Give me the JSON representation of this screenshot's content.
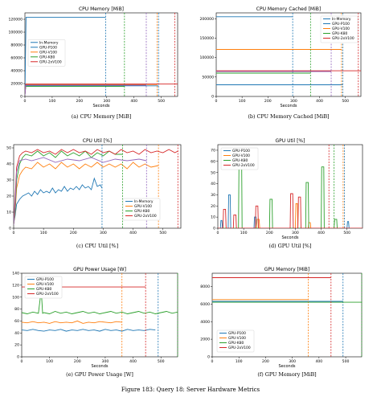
{
  "figure_caption": "Figure 183: Query 18: Server Hardware Metrics",
  "colors": {
    "In-Memory": "#1f77b4",
    "GPU-P100": "#1f77b4",
    "GPU-V100": "#ff7f0e",
    "GPU-K80": "#2ca02c",
    "GPU-2xV100": "#d62728",
    "CPU-V100": "#ff7f0e",
    "CPU-K80": "#2ca02c"
  },
  "chart_data": [
    {
      "id": "a",
      "type": "line",
      "title": "CPU Memory [MiB]",
      "xlabel": "Seconds",
      "caption": "(a) CPU Memory [MiB]",
      "xlim": [
        0,
        560
      ],
      "ylim": [
        0,
        130000
      ],
      "xticks": [
        0,
        100,
        200,
        300,
        400,
        500
      ],
      "yticks": [
        0,
        20000,
        40000,
        60000,
        80000,
        100000,
        120000
      ],
      "legend": "middle-left",
      "series": [
        {
          "name": "In-Memory",
          "color": "#1f77b4",
          "x": [
            0,
            4,
            296
          ],
          "y": [
            3000,
            123000,
            123000
          ],
          "end": 296
        },
        {
          "name": "GPU-P100",
          "color": "#1f77b4",
          "x": [
            0,
            3,
            490
          ],
          "y": [
            2000,
            16500,
            16500
          ],
          "end": 490
        },
        {
          "name": "GPU-V100",
          "color": "#ff7f0e",
          "x": [
            0,
            3,
            485
          ],
          "y": [
            2000,
            18500,
            18500
          ],
          "end": 485
        },
        {
          "name": "GPU-K80",
          "color": "#2ca02c",
          "x": [
            0,
            3,
            365
          ],
          "y": [
            2000,
            15500,
            15500
          ],
          "end": 365
        },
        {
          "name": "GPU-2xV100",
          "color": "#d62728",
          "x": [
            0,
            3,
            560
          ],
          "y": [
            2000,
            19500,
            19500
          ],
          "end": 550
        },
        {
          "name": "",
          "color": "#9467bd",
          "x": [
            0,
            3,
            445
          ],
          "y": [
            2000,
            17500,
            17500
          ],
          "end": 445
        }
      ]
    },
    {
      "id": "b",
      "type": "line",
      "title": "CPU Memory Cached [MiB]",
      "xlabel": "Seconds",
      "caption": "(b) CPU Memory Cached [MiB]",
      "xlim": [
        0,
        560
      ],
      "ylim": [
        0,
        215000
      ],
      "xticks": [
        0,
        100,
        200,
        300,
        400,
        500
      ],
      "yticks": [
        0,
        50000,
        100000,
        150000,
        200000
      ],
      "legend": "top-right",
      "series": [
        {
          "name": "In-Memory",
          "color": "#1f77b4",
          "x": [
            0,
            296
          ],
          "y": [
            205000,
            205000
          ],
          "end": 296
        },
        {
          "name": "GPU-P100",
          "color": "#1f77b4",
          "x": [
            0,
            490
          ],
          "y": [
            30000,
            30000
          ],
          "end": 490
        },
        {
          "name": "GPU-V100",
          "color": "#ff7f0e",
          "x": [
            0,
            485
          ],
          "y": [
            121000,
            121000
          ],
          "end": 485
        },
        {
          "name": "GPU-K80",
          "color": "#2ca02c",
          "x": [
            0,
            365
          ],
          "y": [
            60000,
            60000
          ],
          "end": 365
        },
        {
          "name": "GPU-2xV100",
          "color": "#d62728",
          "x": [
            0,
            560
          ],
          "y": [
            66000,
            66000
          ],
          "end": 550
        },
        {
          "name": "",
          "color": "#9467bd",
          "x": [
            0,
            445
          ],
          "y": [
            64000,
            64000
          ],
          "end": 445
        }
      ]
    },
    {
      "id": "c",
      "type": "line",
      "title": "CPU Util [%]",
      "xlabel": "",
      "caption": "(c) CPU Util [%]",
      "xlim": [
        0,
        560
      ],
      "ylim": [
        0,
        52
      ],
      "xticks": [
        0,
        100,
        200,
        300,
        400,
        500
      ],
      "yticks": [
        0,
        10,
        20,
        30,
        40,
        50
      ],
      "legend": "lower-right",
      "series": [
        {
          "name": "In-Memory",
          "color": "#1f77b4",
          "x": [
            0,
            5,
            10,
            20,
            30,
            40,
            50,
            60,
            70,
            80,
            90,
            100,
            110,
            120,
            130,
            140,
            150,
            160,
            170,
            180,
            190,
            200,
            210,
            220,
            230,
            240,
            250,
            260,
            270,
            280,
            290,
            296
          ],
          "y": [
            3,
            8,
            15,
            18,
            20,
            21,
            22,
            20,
            23,
            21,
            24,
            22,
            23,
            22,
            25,
            22,
            24,
            23,
            26,
            23,
            25,
            24,
            26,
            24,
            27,
            25,
            26,
            24,
            31,
            26,
            27,
            25
          ],
          "end": 296
        },
        {
          "name": "GPU-V100",
          "color": "#ff7f0e",
          "x": [
            0,
            5,
            10,
            20,
            30,
            40,
            60,
            80,
            100,
            120,
            140,
            160,
            180,
            200,
            220,
            240,
            260,
            280,
            300,
            320,
            340,
            360,
            380,
            400,
            420,
            440,
            460,
            485
          ],
          "y": [
            2,
            10,
            25,
            33,
            36,
            38,
            37,
            41,
            38,
            40,
            37,
            41,
            38,
            40,
            37,
            40,
            38,
            41,
            38,
            40,
            38,
            40,
            37,
            41,
            38,
            40,
            38,
            39
          ],
          "end": 485
        },
        {
          "name": "GPU-K80",
          "color": "#2ca02c",
          "x": [
            0,
            5,
            10,
            20,
            30,
            40,
            60,
            80,
            100,
            120,
            140,
            160,
            180,
            200,
            220,
            240,
            260,
            280,
            300,
            320,
            340,
            365
          ],
          "y": [
            2,
            12,
            30,
            40,
            44,
            46,
            45,
            48,
            45,
            47,
            44,
            48,
            45,
            47,
            45,
            48,
            44,
            47,
            45,
            48,
            46,
            46
          ],
          "end": 365
        },
        {
          "name": "GPU-2xV100",
          "color": "#d62728",
          "x": [
            0,
            5,
            10,
            20,
            30,
            40,
            60,
            80,
            100,
            120,
            140,
            160,
            180,
            200,
            220,
            240,
            260,
            280,
            300,
            320,
            340,
            360,
            380,
            400,
            420,
            440,
            460,
            480,
            500,
            520,
            540,
            550
          ],
          "y": [
            2,
            20,
            38,
            45,
            47,
            48,
            47,
            49,
            47,
            48,
            46,
            49,
            47,
            49,
            47,
            48,
            46,
            49,
            47,
            48,
            46,
            49,
            47,
            48,
            46,
            49,
            47,
            48,
            47,
            49,
            47,
            48
          ],
          "end": 550
        },
        {
          "name": "",
          "color": "#9467bd",
          "x": [
            0,
            5,
            10,
            20,
            40,
            60,
            100,
            140,
            180,
            220,
            260,
            300,
            340,
            380,
            420,
            445
          ],
          "y": [
            2,
            15,
            35,
            42,
            43,
            42,
            44,
            41,
            43,
            42,
            44,
            41,
            43,
            42,
            43,
            42
          ],
          "end": 445
        }
      ]
    },
    {
      "id": "d",
      "type": "line",
      "title": "GPU Util [%]",
      "xlabel": "Seconds",
      "caption": "(d) GPU Util [%]",
      "xlim": [
        0,
        560
      ],
      "ylim": [
        0,
        75
      ],
      "xticks": [
        0,
        100,
        200,
        300,
        400,
        500
      ],
      "yticks": [
        0,
        10,
        20,
        30,
        40,
        50,
        60,
        70
      ],
      "legend": "top-left",
      "series": [
        {
          "name": "GPU-P100",
          "color": "#1f77b4",
          "x": [
            0,
            10,
            12,
            16,
            18,
            40,
            42,
            48,
            50,
            140,
            142,
            148,
            150,
            500,
            502,
            506,
            508,
            560
          ],
          "y": [
            0,
            0,
            7,
            7,
            0,
            0,
            30,
            30,
            0,
            0,
            10,
            10,
            0,
            0,
            6,
            6,
            0,
            0
          ],
          "end": 490
        },
        {
          "name": "GPU-V100",
          "color": "#ff7f0e",
          "x": [
            0,
            150,
            152,
            160,
            162,
            300,
            302,
            308,
            310,
            350,
            352,
            358,
            360,
            560
          ],
          "y": [
            0,
            0,
            8,
            8,
            0,
            0,
            22,
            22,
            0,
            0,
            5,
            5,
            0,
            0
          ],
          "end": 485
        },
        {
          "name": "GPU-K80",
          "color": "#2ca02c",
          "x": [
            0,
            80,
            82,
            92,
            94,
            200,
            202,
            210,
            212,
            340,
            342,
            350,
            352,
            400,
            402,
            410,
            412,
            450,
            452,
            460,
            462,
            560
          ],
          "y": [
            0,
            0,
            65,
            65,
            0,
            0,
            26,
            26,
            0,
            0,
            41,
            41,
            0,
            0,
            55,
            55,
            0,
            0,
            8,
            8,
            0,
            0
          ],
          "end": 450
        },
        {
          "name": "GPU-2xV100",
          "color": "#d62728",
          "x": [
            0,
            20,
            22,
            30,
            32,
            60,
            62,
            70,
            72,
            145,
            147,
            155,
            157,
            280,
            282,
            290,
            292,
            310,
            312,
            320,
            322,
            560
          ],
          "y": [
            0,
            0,
            17,
            17,
            0,
            0,
            12,
            12,
            0,
            0,
            20,
            20,
            0,
            0,
            31,
            31,
            0,
            0,
            28,
            28,
            0,
            0
          ],
          "end": 430
        }
      ]
    },
    {
      "id": "e",
      "type": "line",
      "title": "GPU Power Usage [W]",
      "xlabel": "Seconds",
      "caption": "(e) GPU Power Usage [W]",
      "xlim": [
        0,
        560
      ],
      "ylim": [
        0,
        140
      ],
      "xticks": [
        0,
        100,
        200,
        300,
        400,
        500
      ],
      "yticks": [
        0,
        20,
        40,
        60,
        80,
        100,
        120,
        140
      ],
      "legend": "top-left",
      "series": [
        {
          "name": "GPU-P100",
          "color": "#1f77b4",
          "x": [
            0,
            20,
            40,
            60,
            80,
            100,
            120,
            140,
            160,
            180,
            200,
            220,
            240,
            260,
            280,
            300,
            320,
            340,
            360,
            380,
            400,
            420,
            440,
            460,
            480
          ],
          "y": [
            45,
            44,
            46,
            44,
            43,
            45,
            44,
            46,
            43,
            45,
            44,
            46,
            44,
            45,
            43,
            46,
            44,
            45,
            43,
            46,
            44,
            45,
            44,
            46,
            45
          ],
          "end": 490
        },
        {
          "name": "GPU-V100",
          "color": "#ff7f0e",
          "x": [
            0,
            20,
            40,
            60,
            80,
            100,
            120,
            140,
            160,
            180,
            200,
            220,
            240,
            260,
            280,
            300,
            320,
            340,
            360
          ],
          "y": [
            58,
            57,
            59,
            57,
            58,
            56,
            59,
            57,
            58,
            57,
            60,
            56,
            58,
            57,
            59,
            58,
            57,
            59,
            58
          ],
          "end": 360
        },
        {
          "name": "GPU-K80",
          "color": "#2ca02c",
          "x": [
            0,
            20,
            40,
            60,
            70,
            75,
            80,
            100,
            120,
            140,
            160,
            180,
            200,
            220,
            240,
            260,
            280,
            300,
            320,
            340,
            360,
            380,
            400,
            420,
            440,
            460,
            480,
            500,
            520,
            540,
            560
          ],
          "y": [
            74,
            72,
            75,
            73,
            112,
            73,
            74,
            72,
            76,
            73,
            75,
            72,
            74,
            76,
            73,
            75,
            72,
            74,
            76,
            73,
            75,
            72,
            74,
            76,
            73,
            75,
            72,
            74,
            76,
            73,
            75
          ],
          "end": 560
        },
        {
          "name": "GPU-2xV100",
          "color": "#d62728",
          "x": [
            0,
            445
          ],
          "y": [
            117,
            117
          ],
          "end": 445
        }
      ]
    },
    {
      "id": "f",
      "type": "line",
      "title": "GPU Memory [MiB]",
      "xlabel": "Seconds",
      "caption": "(f) GPU Memory [MiB]",
      "xlim": [
        0,
        560
      ],
      "ylim": [
        0,
        9500
      ],
      "xticks": [
        0,
        100,
        200,
        300,
        400,
        500
      ],
      "yticks": [
        0,
        2000,
        4000,
        6000,
        8000
      ],
      "legend": "bottom-left",
      "series": [
        {
          "name": "GPU-P100",
          "color": "#1f77b4",
          "x": [
            0,
            490
          ],
          "y": [
            6300,
            6300
          ],
          "end": 490
        },
        {
          "name": "GPU-V100",
          "color": "#ff7f0e",
          "x": [
            0,
            360
          ],
          "y": [
            6500,
            6500
          ],
          "end": 360
        },
        {
          "name": "GPU-K80",
          "color": "#2ca02c",
          "x": [
            0,
            560
          ],
          "y": [
            6200,
            6200
          ],
          "end": 560
        },
        {
          "name": "GPU-2xV100",
          "color": "#d62728",
          "x": [
            0,
            445
          ],
          "y": [
            9000,
            9000
          ],
          "end": 445
        }
      ]
    }
  ]
}
